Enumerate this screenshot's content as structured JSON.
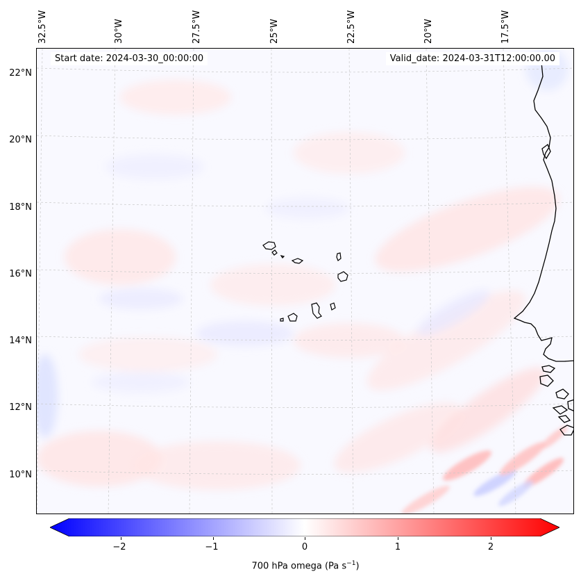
{
  "map": {
    "lon_labels": [
      "32.5°W",
      "30°W",
      "27.5°W",
      "25°W",
      "22.5°W",
      "20°W",
      "17.5°W"
    ],
    "lat_labels": [
      "22°N",
      "20°N",
      "18°N",
      "16°N",
      "14°N",
      "12°N",
      "10°N"
    ],
    "start_date": "Start date: 2024-03-30_00:00:00",
    "valid_date": "Valid_date: 2024-03-31T12:00:00.00",
    "coastline_color": "#000000",
    "gridline_color": "#c8c8c8"
  },
  "colorbar": {
    "colormap": "bwr",
    "ticks": [
      "−2",
      "−1",
      "0",
      "1",
      "2"
    ],
    "tick_values": [
      -2,
      -1,
      0,
      1,
      2
    ],
    "range": [
      -2.6,
      2.6
    ],
    "label_main": "700 hPa omega (Pa s",
    "label_sup": "−1",
    "label_end": ")",
    "color_min": "#0000ff",
    "color_mid": "#ffffff",
    "color_max": "#ff0000"
  }
}
